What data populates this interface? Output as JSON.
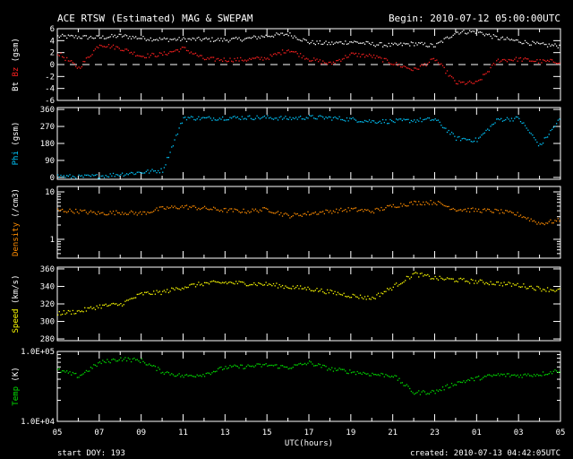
{
  "title": "ACE RTSW (Estimated) MAG & SWEPAM",
  "begin": "Begin: 2010-07-12 05:00:00UTC",
  "xlabel": "UTC(hours)",
  "start_doy": "start DOY: 193",
  "created": "created: 2010-07-13 04:42:05UTC",
  "chart_data": {
    "type": "scatter",
    "x_hours_from_start": [
      0,
      1,
      2,
      3,
      4,
      5,
      6,
      7,
      8,
      9,
      10,
      11,
      12,
      13,
      14,
      15,
      16,
      17,
      18,
      19,
      20,
      21,
      22,
      23,
      24
    ],
    "x_tick_labels": [
      "05",
      "07",
      "09",
      "11",
      "13",
      "15",
      "17",
      "19",
      "21",
      "23",
      "01",
      "03",
      "05"
    ],
    "panels": [
      {
        "name": "mag",
        "ylabel_parts": [
          {
            "text": "Bt",
            "color": "#ffffff"
          },
          {
            "text": " Bz",
            "color": "#ff2020"
          },
          {
            "text": " (gsm)",
            "color": "#ffffff"
          }
        ],
        "ylim": [
          -6,
          6
        ],
        "log": false,
        "ticks": [
          "6",
          "4",
          "2",
          "0",
          "-2",
          "-4",
          "-6"
        ],
        "tick_values": [
          6,
          4,
          2,
          0,
          -2,
          -4,
          -6
        ],
        "zero_line": true,
        "series": [
          {
            "name": "Bt",
            "color": "#ffffff",
            "values": [
              4.8,
              4.7,
              4.6,
              4.9,
              4.5,
              4.3,
              4.3,
              4.3,
              4.2,
              4.4,
              4.9,
              5.2,
              3.8,
              3.6,
              3.9,
              3.5,
              3.3,
              3.6,
              3.2,
              5.5,
              5.6,
              4.5,
              4.0,
              3.4,
              3.2
            ]
          },
          {
            "name": "Bz",
            "color": "#ff2020",
            "values": [
              2.0,
              -0.5,
              3.5,
              2.8,
              1.5,
              1.8,
              2.8,
              1.0,
              0.9,
              0.9,
              1.2,
              2.6,
              1.0,
              0.2,
              1.8,
              1.5,
              0.3,
              -0.8,
              1.0,
              -3.0,
              -3.0,
              0.8,
              1.0,
              0.6,
              0.6
            ]
          }
        ]
      },
      {
        "name": "phi",
        "ylabel_parts": [
          {
            "text": "Phi",
            "color": "#00c8ff"
          },
          {
            "text": " (gsm)",
            "color": "#ffffff"
          }
        ],
        "ylim": [
          -10,
          370
        ],
        "log": false,
        "ticks": [
          "360",
          "270",
          "180",
          "90",
          "0"
        ],
        "tick_values": [
          360,
          270,
          180,
          90,
          0
        ],
        "series": [
          {
            "name": "Phi",
            "color": "#00c8ff",
            "values": [
              10,
              5,
              10,
              20,
              30,
              40,
              320,
              315,
              318,
              320,
              320,
              315,
              322,
              318,
              310,
              300,
              300,
              305,
              310,
              210,
              200,
              310,
              315,
              170,
              320
            ]
          }
        ]
      },
      {
        "name": "density",
        "ylabel_parts": [
          {
            "text": "Density",
            "color": "#ff8c00"
          },
          {
            "text": " (/cm3)",
            "color": "#ffffff"
          }
        ],
        "ylim": [
          0.4,
          13
        ],
        "log": true,
        "ticks": [
          "10",
          "1"
        ],
        "tick_values": [
          10,
          1
        ],
        "series": [
          {
            "name": "Density",
            "color": "#ff8c00",
            "values": [
              4.2,
              4.0,
              3.6,
              3.8,
              3.6,
              4.6,
              5.0,
              4.6,
              4.2,
              4.0,
              4.4,
              3.2,
              3.6,
              4.0,
              4.4,
              4.0,
              5.2,
              6.0,
              6.2,
              4.4,
              4.2,
              4.0,
              3.4,
              2.2,
              2.6
            ]
          }
        ]
      },
      {
        "name": "speed",
        "ylabel_parts": [
          {
            "text": "Speed",
            "color": "#ffff00"
          },
          {
            "text": " (km/s)",
            "color": "#ffffff"
          }
        ],
        "ylim": [
          278,
          362
        ],
        "log": false,
        "ticks": [
          "360",
          "340",
          "320",
          "300",
          "280"
        ],
        "tick_values": [
          360,
          340,
          320,
          300,
          280
        ],
        "series": [
          {
            "name": "Speed",
            "color": "#ffff00",
            "values": [
              310,
              312,
              318,
              320,
              332,
              334,
              340,
              344,
              345,
              344,
              343,
              340,
              338,
              334,
              330,
              327,
              340,
              355,
              350,
              348,
              346,
              344,
              342,
              338,
              336
            ]
          }
        ]
      },
      {
        "name": "temp",
        "ylabel_parts": [
          {
            "text": "Temp",
            "color": "#00e000"
          },
          {
            "text": " (K)",
            "color": "#ffffff"
          }
        ],
        "ylim": [
          10000,
          100000
        ],
        "log": true,
        "ticks": [
          "1.0E+05",
          "1.0E+04"
        ],
        "tick_values": [
          100000,
          10000
        ],
        "series": [
          {
            "name": "Temp",
            "color": "#00e000",
            "values": [
              55000,
              45000,
              70000,
              80000,
              75000,
              52000,
              45000,
              48000,
              60000,
              62000,
              65000,
              60000,
              70000,
              57000,
              52000,
              48000,
              46000,
              26000,
              27000,
              36000,
              42000,
              47000,
              46000,
              48000,
              55000
            ]
          }
        ]
      }
    ]
  }
}
